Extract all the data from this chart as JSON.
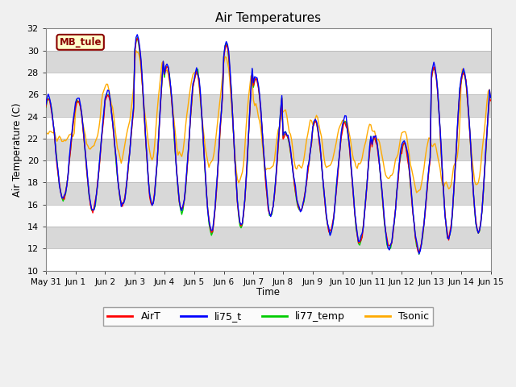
{
  "title": "Air Temperatures",
  "ylabel": "Air Temperature (C)",
  "xlabel": "Time",
  "ylim": [
    10,
    32
  ],
  "site_label": "MB_tule",
  "legend": [
    "AirT",
    "li75_t",
    "li77_temp",
    "Tsonic"
  ],
  "line_colors": [
    "#ff0000",
    "#0000ff",
    "#00cc00",
    "#ffaa00"
  ],
  "x_tick_labels": [
    "May 31",
    "Jun 1",
    "Jun 2",
    "Jun 3",
    "Jun 4",
    "Jun 5",
    "Jun 6",
    "Jun 7",
    "Jun 8",
    "Jun 9",
    "Jun 10",
    "Jun 11",
    "Jun 12",
    "Jun 13",
    "Jun 14",
    "Jun 15"
  ],
  "x_tick_positions": [
    0,
    24,
    48,
    72,
    96,
    120,
    144,
    168,
    192,
    216,
    240,
    264,
    288,
    312,
    336,
    360
  ],
  "yticks": [
    10,
    12,
    14,
    16,
    18,
    20,
    22,
    24,
    26,
    28,
    30,
    32
  ],
  "day_peaks_core": [
    25.5,
    25.5,
    26.0,
    31.0,
    28.5,
    28.0,
    30.5,
    27.5,
    22.5,
    23.5,
    23.5,
    22.0,
    21.5,
    28.5,
    28.0,
    26.0
  ],
  "day_troughs_core": [
    16.5,
    15.5,
    16.0,
    16.0,
    15.5,
    13.5,
    14.0,
    15.0,
    15.5,
    13.5,
    12.5,
    12.0,
    11.8,
    13.0,
    13.5,
    17.0
  ],
  "tsonic_day_peaks": [
    22.0,
    26.0,
    26.5,
    30.3,
    28.5,
    28.0,
    29.5,
    24.5,
    24.5,
    24.0,
    24.0,
    22.5,
    22.5,
    21.5,
    28.5,
    26.0
  ],
  "tsonic_day_troughs": [
    22.0,
    20.5,
    20.5,
    20.5,
    20.5,
    19.0,
    18.0,
    18.5,
    19.0,
    19.5,
    19.5,
    18.5,
    17.5,
    17.5,
    18.0,
    17.0
  ]
}
